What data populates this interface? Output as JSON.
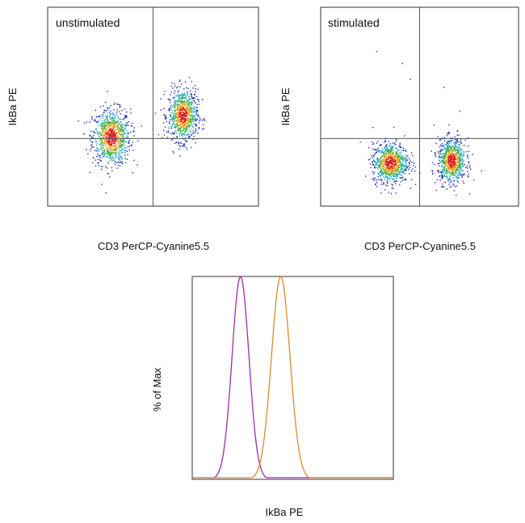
{
  "chart_data": [
    {
      "type": "scatter",
      "title": "unstimulated",
      "xlabel": "CD3 PerCP-Cyanine5.5",
      "ylabel": "IkBa PE",
      "xlim": [
        0,
        100
      ],
      "ylim": [
        0,
        100
      ],
      "grid": false,
      "quadrant_gates": {
        "x": 50,
        "y": 34
      },
      "populations": [
        {
          "name": "",
          "center": [
            30,
            35
          ],
          "spread": [
            4.5,
            7
          ],
          "n": 900
        },
        {
          "name": "",
          "center": [
            64,
            46
          ],
          "spread": [
            3.5,
            6.5
          ],
          "n": 800
        }
      ]
    },
    {
      "type": "scatter",
      "title": "stimulated",
      "xlabel": "CD3 PerCP-Cyanine5.5",
      "ylabel": "IkBa PE",
      "xlim": [
        0,
        100
      ],
      "ylim": [
        0,
        100
      ],
      "grid": false,
      "quadrant_gates": {
        "x": 50,
        "y": 34
      },
      "populations": [
        {
          "name": "",
          "center": [
            35,
            22
          ],
          "spread": [
            4.5,
            5
          ],
          "n": 850
        },
        {
          "name": "",
          "center": [
            66,
            23
          ],
          "spread": [
            3.5,
            5.5
          ],
          "n": 800
        }
      ]
    },
    {
      "type": "line",
      "title": "",
      "xlabel": "IkBa PE",
      "ylabel": "% of Max",
      "xlim": [
        0,
        100
      ],
      "ylim": [
        0,
        100
      ],
      "grid": false,
      "series": [
        {
          "name": "",
          "color": "#9b2fa3",
          "peak": 24,
          "width": 4.2
        },
        {
          "name": "",
          "color": "#d98a2b",
          "peak": 44,
          "width": 4.6
        }
      ]
    }
  ]
}
